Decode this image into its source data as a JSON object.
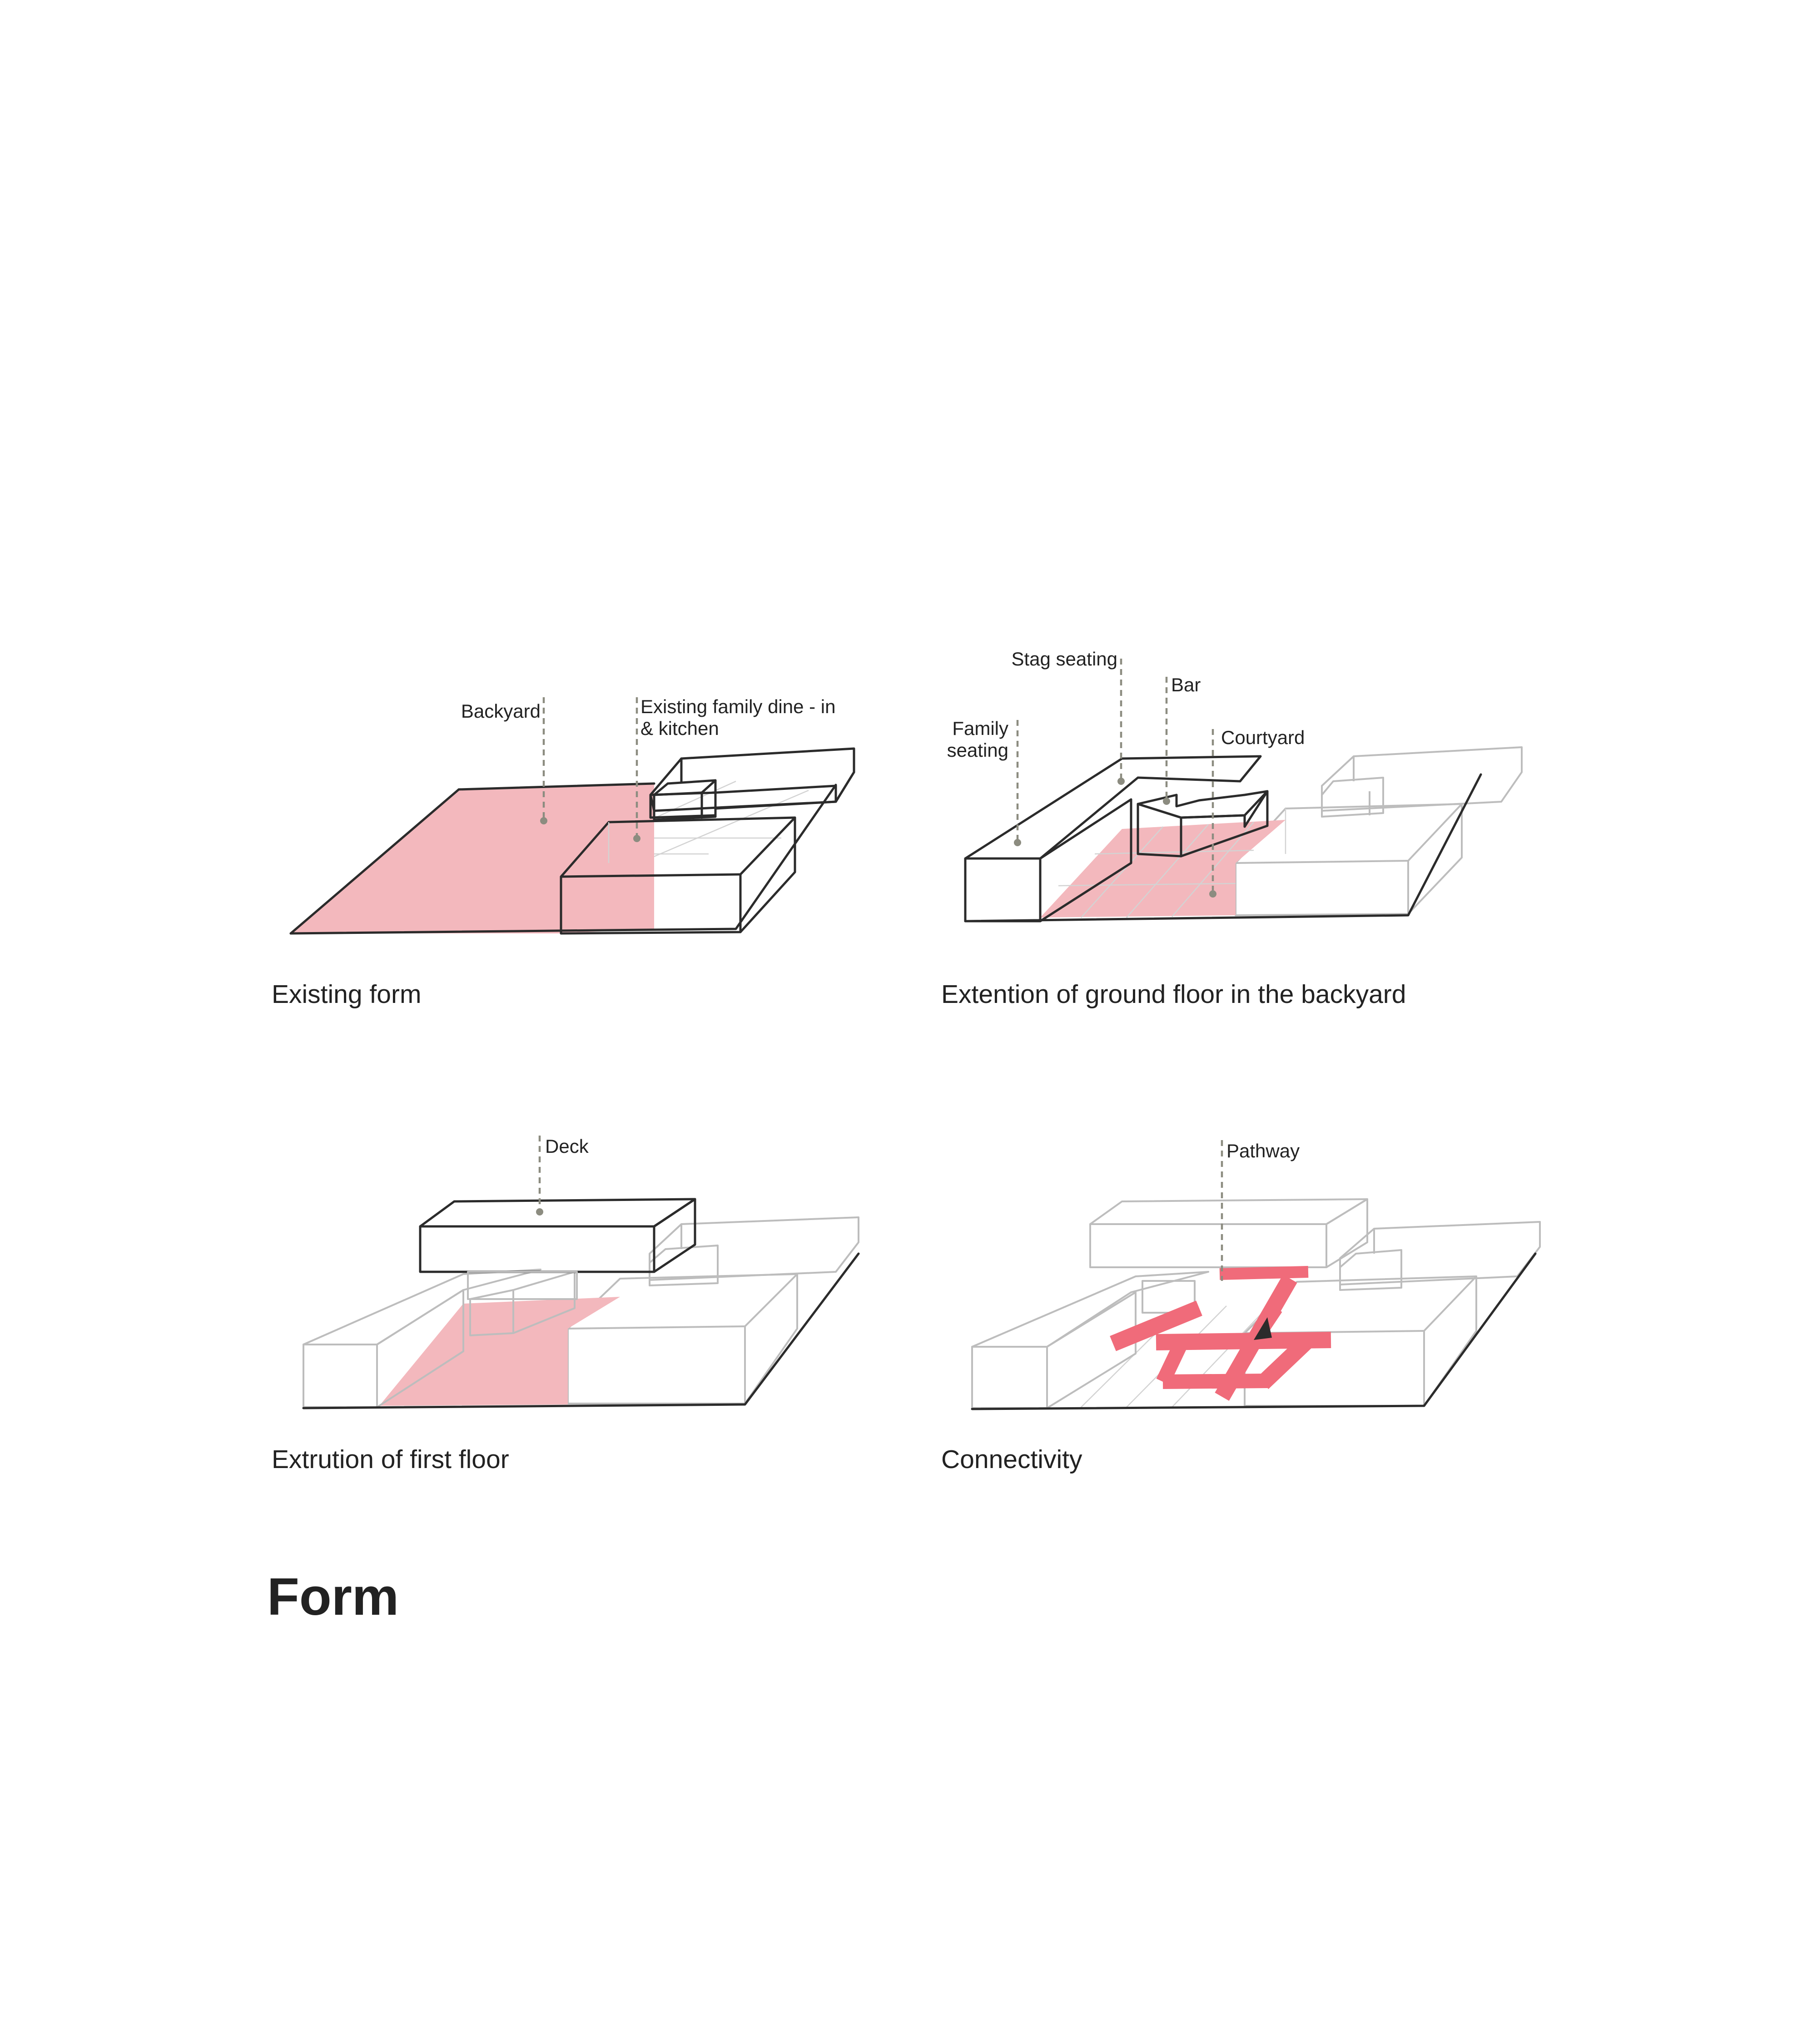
{
  "colors": {
    "backyard": "#f3b8bd",
    "pathway": "#f06b7a",
    "solid_dark": "#9c9f9f",
    "glass_top": "#e8f1f1",
    "ghost": "#e3e3e3",
    "ink": "#2b2b2b",
    "leader": "#8c8c80"
  },
  "panels": {
    "existing_form": {
      "caption": "Existing form",
      "labels": {
        "backyard": "Backyard",
        "kitchen_line1": "Existing family dine - in",
        "kitchen_line2": "& kitchen"
      }
    },
    "extension": {
      "caption": "Extention of ground floor in the backyard",
      "labels": {
        "stag": "Stag seating",
        "bar": "Bar",
        "family_line1": "Family",
        "family_line2": "seating",
        "courtyard": "Courtyard"
      }
    },
    "first_floor": {
      "caption": "Extrution of first floor",
      "labels": {
        "deck": "Deck"
      }
    },
    "connectivity": {
      "caption": "Connectivity",
      "labels": {
        "pathway": "Pathway"
      }
    }
  },
  "heading": "Form"
}
